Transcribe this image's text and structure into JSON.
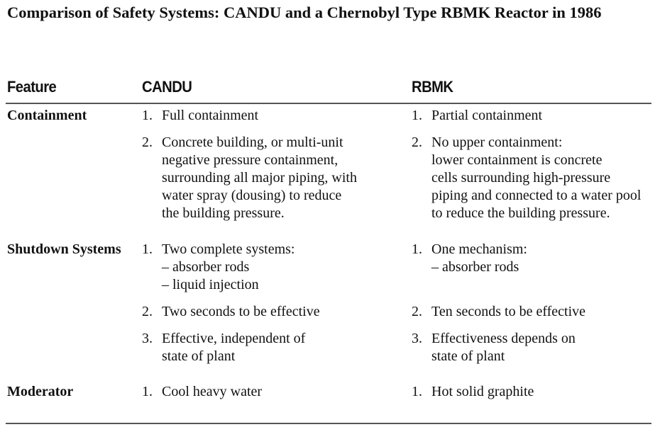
{
  "title": "Comparison of Safety Systems: CANDU and a Chernobyl Type RBMK Reactor in 1986",
  "headers": {
    "feature": "Feature",
    "candu": "CANDU",
    "rbmk": "RBMK"
  },
  "rows": [
    {
      "feature": "Containment",
      "candu": [
        {
          "num": "1.",
          "lines": [
            "Full containment"
          ]
        },
        {
          "num": "2.",
          "lines": [
            "Concrete building, or multi-unit",
            "negative pressure containment,",
            "surrounding all major piping, with",
            "water spray (dousing) to reduce",
            "the building pressure."
          ]
        }
      ],
      "rbmk": [
        {
          "num": "1.",
          "lines": [
            "Partial containment"
          ]
        },
        {
          "num": "2.",
          "lines": [
            "No upper containment:",
            "lower containment is concrete",
            "cells surrounding high-pressure",
            "piping and connected to a water pool",
            "to reduce the building pressure."
          ]
        }
      ]
    },
    {
      "feature": "Shutdown Systems",
      "candu": [
        {
          "num": "1.",
          "lines": [
            "Two complete systems:",
            "– absorber rods",
            "– liquid injection"
          ]
        },
        {
          "num": "2.",
          "lines": [
            "Two seconds to be effective"
          ]
        },
        {
          "num": "3.",
          "lines": [
            "Effective, independent of",
            "state of plant"
          ]
        }
      ],
      "rbmk": [
        {
          "num": "1.",
          "lines": [
            "One mechanism:",
            "– absorber rods"
          ]
        },
        {
          "num": "2.",
          "lines": [
            "Ten seconds to be effective"
          ]
        },
        {
          "num": "3.",
          "lines": [
            "Effectiveness depends on",
            "state of plant"
          ]
        }
      ]
    },
    {
      "feature": "Moderator",
      "candu": [
        {
          "num": "1.",
          "lines": [
            "Cool heavy water"
          ]
        }
      ],
      "rbmk": [
        {
          "num": "1.",
          "lines": [
            "Hot solid graphite"
          ]
        }
      ]
    }
  ]
}
